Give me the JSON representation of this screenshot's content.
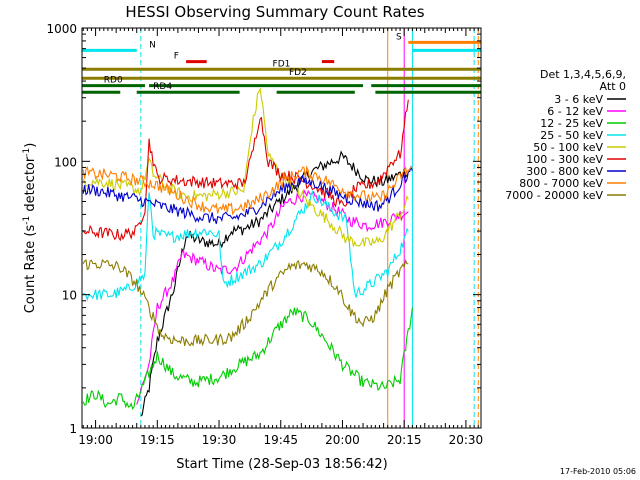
{
  "chart_data": {
    "type": "line",
    "title": "HESSI Observing Summary Count Rates",
    "xlabel": "Start Time (28-Sep-03 18:56:42)",
    "ylabel": "Count Rate (s",
    "ylabel_sup": "-1",
    "ylabel_tail": " detector",
    "ylabel_end": ")",
    "footer": "17-Feb-2010 05:06",
    "y_scale": "log",
    "ylim": [
      1,
      1000
    ],
    "xlim": [
      "18:56:42",
      "20:33:40"
    ],
    "x_ticks": [
      "19:00",
      "19:15",
      "19:30",
      "19:45",
      "20:00",
      "20:15",
      "20:30"
    ],
    "y_ticks": [
      "1",
      "10",
      "100",
      "1000"
    ],
    "legend_header": [
      "Det 1,3,4,5,6,9,",
      "Att 0"
    ],
    "series": [
      {
        "name": "3 - 6 keV",
        "color": "#000000",
        "points": [
          [
            "19:11",
            1.2
          ],
          [
            "19:13",
            2
          ],
          [
            "19:15",
            4.5
          ],
          [
            "19:19",
            11
          ],
          [
            "19:22",
            28
          ],
          [
            "19:26",
            25
          ],
          [
            "19:30",
            24
          ],
          [
            "19:33",
            30
          ],
          [
            "19:36",
            31
          ],
          [
            "19:40",
            36
          ],
          [
            "19:44",
            48
          ],
          [
            "19:48",
            62
          ],
          [
            "19:52",
            82
          ],
          [
            "19:56",
            95
          ],
          [
            "20:00",
            108
          ],
          [
            "20:03",
            88
          ],
          [
            "20:06",
            72
          ],
          [
            "20:10",
            70
          ],
          [
            "20:14",
            80
          ],
          [
            "20:16",
            86
          ]
        ]
      },
      {
        "name": "6 - 12 keV",
        "color": "#ff00ff",
        "points": [
          [
            "19:10",
            1.5
          ],
          [
            "19:13",
            3
          ],
          [
            "19:15",
            8
          ],
          [
            "19:19",
            13
          ],
          [
            "19:21",
            20
          ],
          [
            "19:25",
            18
          ],
          [
            "19:30",
            15
          ],
          [
            "19:34",
            16
          ],
          [
            "19:38",
            22
          ],
          [
            "19:42",
            30
          ],
          [
            "19:46",
            48
          ],
          [
            "19:50",
            55
          ],
          [
            "19:54",
            53
          ],
          [
            "19:58",
            44
          ],
          [
            "20:02",
            36
          ],
          [
            "20:06",
            33
          ],
          [
            "20:10",
            35
          ],
          [
            "20:14",
            40
          ],
          [
            "20:16",
            42
          ]
        ]
      },
      {
        "name": "12 - 25 keV",
        "color": "#00cc00",
        "points": [
          [
            "18:57",
            1.6
          ],
          [
            "19:00",
            1.8
          ],
          [
            "19:03",
            1.5
          ],
          [
            "19:06",
            1.7
          ],
          [
            "19:09",
            1.4
          ],
          [
            "19:12",
            2.2
          ],
          [
            "19:15",
            3.5
          ],
          [
            "19:19",
            2.5
          ],
          [
            "19:24",
            2.2
          ],
          [
            "19:30",
            2.4
          ],
          [
            "19:35",
            3
          ],
          [
            "19:40",
            3.6
          ],
          [
            "19:44",
            5.5
          ],
          [
            "19:48",
            7.5
          ],
          [
            "19:52",
            6.5
          ],
          [
            "19:56",
            4.5
          ],
          [
            "20:00",
            3
          ],
          [
            "20:05",
            2.2
          ],
          [
            "20:10",
            2
          ],
          [
            "20:14",
            2.3
          ],
          [
            "20:17",
            8
          ]
        ]
      },
      {
        "name": "25 - 50 keV",
        "color": "#00e5ee",
        "points": [
          [
            "18:57",
            10
          ],
          [
            "19:00",
            10
          ],
          [
            "19:04",
            10
          ],
          [
            "19:08",
            11
          ],
          [
            "19:12",
            14
          ],
          [
            "19:13",
            62
          ],
          [
            "19:14",
            29
          ],
          [
            "19:18",
            27
          ],
          [
            "19:23",
            29
          ],
          [
            "19:27",
            30
          ],
          [
            "19:30",
            28
          ],
          [
            "19:31",
            12
          ],
          [
            "19:35",
            14
          ],
          [
            "19:40",
            17
          ],
          [
            "19:45",
            25
          ],
          [
            "19:49",
            38
          ],
          [
            "19:53",
            56
          ],
          [
            "19:57",
            44
          ],
          [
            "20:01",
            36
          ],
          [
            "20:03",
            10
          ],
          [
            "20:07",
            12
          ],
          [
            "20:11",
            15
          ],
          [
            "20:14",
            22
          ],
          [
            "20:16",
            30
          ]
        ]
      },
      {
        "name": "50 - 100 keV",
        "color": "#cccc00",
        "points": [
          [
            "18:57",
            72
          ],
          [
            "19:02",
            70
          ],
          [
            "19:07",
            65
          ],
          [
            "19:11",
            60
          ],
          [
            "19:13",
            100
          ],
          [
            "19:14",
            80
          ],
          [
            "19:18",
            62
          ],
          [
            "19:22",
            55
          ],
          [
            "19:27",
            55
          ],
          [
            "19:31",
            58
          ],
          [
            "19:36",
            60
          ],
          [
            "19:38",
            180
          ],
          [
            "19:40",
            370
          ],
          [
            "19:42",
            110
          ],
          [
            "19:45",
            80
          ],
          [
            "19:49",
            60
          ],
          [
            "19:53",
            45
          ],
          [
            "19:57",
            35
          ],
          [
            "20:01",
            26
          ],
          [
            "20:05",
            24
          ],
          [
            "20:09",
            25
          ],
          [
            "20:12",
            33
          ],
          [
            "20:15",
            45
          ],
          [
            "20:16",
            52
          ]
        ]
      },
      {
        "name": "100 - 300 keV",
        "color": "#e00000",
        "points": [
          [
            "18:57",
            30
          ],
          [
            "19:02",
            29
          ],
          [
            "19:06",
            28
          ],
          [
            "19:10",
            30
          ],
          [
            "19:12",
            45
          ],
          [
            "19:13",
            140
          ],
          [
            "19:15",
            75
          ],
          [
            "19:20",
            72
          ],
          [
            "19:25",
            70
          ],
          [
            "19:30",
            68
          ],
          [
            "19:33",
            68
          ],
          [
            "19:36",
            68
          ],
          [
            "19:38",
            110
          ],
          [
            "19:40",
            230
          ],
          [
            "19:42",
            100
          ],
          [
            "19:45",
            80
          ],
          [
            "19:49",
            75
          ],
          [
            "19:53",
            66
          ],
          [
            "19:57",
            55
          ],
          [
            "20:00",
            46
          ],
          [
            "20:03",
            62
          ],
          [
            "20:06",
            66
          ],
          [
            "20:09",
            72
          ],
          [
            "20:12",
            100
          ],
          [
            "20:14",
            112
          ],
          [
            "20:16",
            290
          ]
        ]
      },
      {
        "name": "300 - 800 keV",
        "color": "#0000cc",
        "points": [
          [
            "18:57",
            62
          ],
          [
            "19:01",
            60
          ],
          [
            "19:05",
            56
          ],
          [
            "19:09",
            53
          ],
          [
            "19:12",
            50
          ],
          [
            "19:14",
            48
          ],
          [
            "19:18",
            44
          ],
          [
            "19:22",
            41
          ],
          [
            "19:26",
            38
          ],
          [
            "19:30",
            37
          ],
          [
            "19:34",
            38
          ],
          [
            "19:38",
            42
          ],
          [
            "19:42",
            52
          ],
          [
            "19:46",
            64
          ],
          [
            "19:50",
            72
          ],
          [
            "19:54",
            68
          ],
          [
            "19:58",
            58
          ],
          [
            "20:02",
            52
          ],
          [
            "20:06",
            48
          ],
          [
            "20:09",
            46
          ],
          [
            "20:12",
            56
          ],
          [
            "20:15",
            75
          ],
          [
            "20:17",
            85
          ]
        ]
      },
      {
        "name": "800 - 7000 keV",
        "color": "#ff7f00",
        "points": [
          [
            "18:57",
            82
          ],
          [
            "19:01",
            80
          ],
          [
            "19:05",
            78
          ],
          [
            "19:09",
            73
          ],
          [
            "19:12",
            70
          ],
          [
            "19:14",
            68
          ],
          [
            "19:18",
            60
          ],
          [
            "19:22",
            52
          ],
          [
            "19:26",
            46
          ],
          [
            "19:30",
            43
          ],
          [
            "19:34",
            44
          ],
          [
            "19:38",
            48
          ],
          [
            "19:42",
            58
          ],
          [
            "19:46",
            72
          ],
          [
            "19:50",
            84
          ],
          [
            "19:54",
            78
          ],
          [
            "19:58",
            66
          ],
          [
            "20:02",
            58
          ],
          [
            "20:06",
            54
          ],
          [
            "20:09",
            52
          ],
          [
            "20:12",
            64
          ],
          [
            "20:15",
            82
          ],
          [
            "20:17",
            90
          ]
        ]
      },
      {
        "name": "7000 - 20000 keV",
        "color": "#8b7d00",
        "points": [
          [
            "18:57",
            17
          ],
          [
            "19:02",
            17
          ],
          [
            "19:06",
            16
          ],
          [
            "19:10",
            12
          ],
          [
            "19:13",
            8
          ],
          [
            "19:16",
            5
          ],
          [
            "19:20",
            4.5
          ],
          [
            "19:25",
            4.5
          ],
          [
            "19:30",
            4.6
          ],
          [
            "19:33",
            4.8
          ],
          [
            "19:36",
            6
          ],
          [
            "19:39",
            8
          ],
          [
            "19:43",
            12
          ],
          [
            "19:47",
            16
          ],
          [
            "19:51",
            17
          ],
          [
            "19:55",
            15
          ],
          [
            "19:59",
            11
          ],
          [
            "20:02",
            7.5
          ],
          [
            "20:05",
            6
          ],
          [
            "20:08",
            7
          ],
          [
            "20:11",
            11
          ],
          [
            "20:14",
            15
          ],
          [
            "20:16",
            17
          ]
        ]
      }
    ],
    "flag_bars": [
      {
        "label": "N",
        "color": "#00e5ee",
        "y": 680,
        "segments": [
          [
            "18:56:42",
            "19:10"
          ],
          [
            "20:17",
            "20:33:40"
          ]
        ],
        "label_time": "19:13"
      },
      {
        "label": "F",
        "color": "#e00000",
        "y": 560,
        "segments": [
          [
            "19:22",
            "19:27"
          ],
          [
            "19:55",
            "19:58"
          ]
        ],
        "label_time": "19:19"
      },
      {
        "label": "S",
        "color": "#ff7f00",
        "y": 780,
        "segments": [
          [
            "20:16",
            "20:33:40"
          ]
        ],
        "label_time": "20:13"
      },
      {
        "label": "FD1",
        "color": "#8b7d00",
        "y": 490,
        "segments": [
          [
            "18:56:42",
            "19:47"
          ],
          [
            "19:47",
            "20:33:40"
          ]
        ],
        "label_time": "19:43"
      },
      {
        "label": "FD2",
        "color": "#8b7d00",
        "y": 420,
        "segments": [
          [
            "18:56:42",
            "20:33:40"
          ]
        ],
        "label_time": "19:47"
      },
      {
        "label": "RD0",
        "color": "#006400",
        "y": 370,
        "segments": [
          [
            "18:56:42",
            "19:12"
          ],
          [
            "19:13",
            "20:05"
          ],
          [
            "20:07",
            "20:33:40"
          ]
        ],
        "label_time": "19:02"
      },
      {
        "label": "RD4",
        "color": "#006400",
        "y": 330,
        "segments": [
          [
            "18:56:42",
            "19:06"
          ],
          [
            "19:10",
            "19:35"
          ],
          [
            "19:44",
            "20:03"
          ],
          [
            "20:08",
            "20:33:40"
          ]
        ],
        "label_time": "19:14"
      }
    ],
    "vertical_markers": [
      {
        "time": "19:11",
        "color": "#00e5ee",
        "dashed": true
      },
      {
        "time": "20:11",
        "color": "#ff7f00",
        "dashed": false
      },
      {
        "time": "20:15",
        "color": "#ff00ff",
        "dashed": false
      },
      {
        "time": "20:17",
        "color": "#00e5ee",
        "dashed": false
      },
      {
        "time": "20:32",
        "color": "#00e5ee",
        "dashed": true
      },
      {
        "time": "20:33",
        "color": "#ff7f00",
        "dashed": true
      }
    ]
  }
}
